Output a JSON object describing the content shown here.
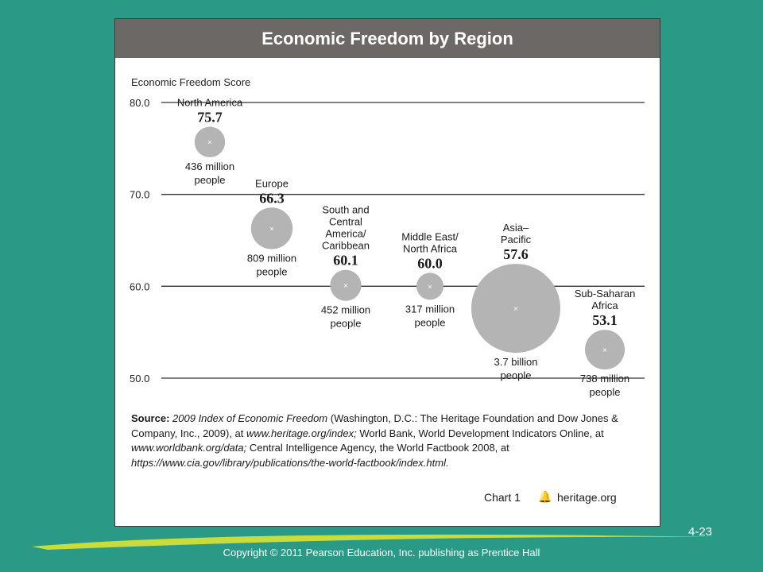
{
  "panel": {
    "title": "Economic Freedom by Region"
  },
  "chart_data": {
    "type": "scatter",
    "title": "Economic Freedom by Region",
    "ylabel": "Economic Freedom Score",
    "ylim": [
      50.0,
      80.0
    ],
    "yticks": [
      "80.0",
      "70.0",
      "60.0",
      "50.0"
    ],
    "grid": true,
    "points": [
      {
        "region_lines": [
          "North America"
        ],
        "score": 75.7,
        "score_label": "75.7",
        "population_lines": [
          "436 million",
          "people"
        ],
        "population_millions": 436
      },
      {
        "region_lines": [
          "Europe"
        ],
        "score": 66.3,
        "score_label": "66.3",
        "population_lines": [
          "809 million",
          "people"
        ],
        "population_millions": 809
      },
      {
        "region_lines": [
          "South and",
          "Central",
          "America/",
          "Caribbean"
        ],
        "score": 60.1,
        "score_label": "60.1",
        "population_lines": [
          "452 million",
          "people"
        ],
        "population_millions": 452
      },
      {
        "region_lines": [
          "Middle East/",
          "North Africa"
        ],
        "score": 60.0,
        "score_label": "60.0",
        "population_lines": [
          "317 million",
          "people"
        ],
        "population_millions": 317
      },
      {
        "region_lines": [
          "Asia–",
          "Pacific"
        ],
        "score": 57.6,
        "score_label": "57.6",
        "population_lines": [
          "3.7 billion",
          "people"
        ],
        "population_millions": 3700
      },
      {
        "region_lines": [
          "Sub-Saharan",
          "Africa"
        ],
        "score": 53.1,
        "score_label": "53.1",
        "population_lines": [
          "738 million",
          "people"
        ],
        "population_millions": 738
      }
    ]
  },
  "source": {
    "label": "Source:",
    "title": "2009 Index of Economic Freedom",
    "text1": " (Washington, D.C.: The Heritage Foundation and Dow Jones & Company, Inc., 2009), at ",
    "url1": "www.heritage.org/index;",
    "text2": " World Bank, World Development Indicators Online, at ",
    "url2": "www.worldbank.org/data;",
    "text3": " Central Intelligence Agency, the World Factbook 2008, at ",
    "url3": "https://www.cia.gov/library/publications/the-world-factbook/index.html."
  },
  "footer": {
    "chart_label": "Chart 1",
    "icon": "bell-icon",
    "site": "heritage.org"
  },
  "slide": {
    "number": "4-23",
    "copyright": "Copyright © 2011 Pearson Education, Inc. publishing as Prentice Hall"
  },
  "colors": {
    "background": "#2a9a86",
    "header": "#6b6866",
    "bubble": "#b4b4b4",
    "swoosh": "#c8dc3c"
  }
}
